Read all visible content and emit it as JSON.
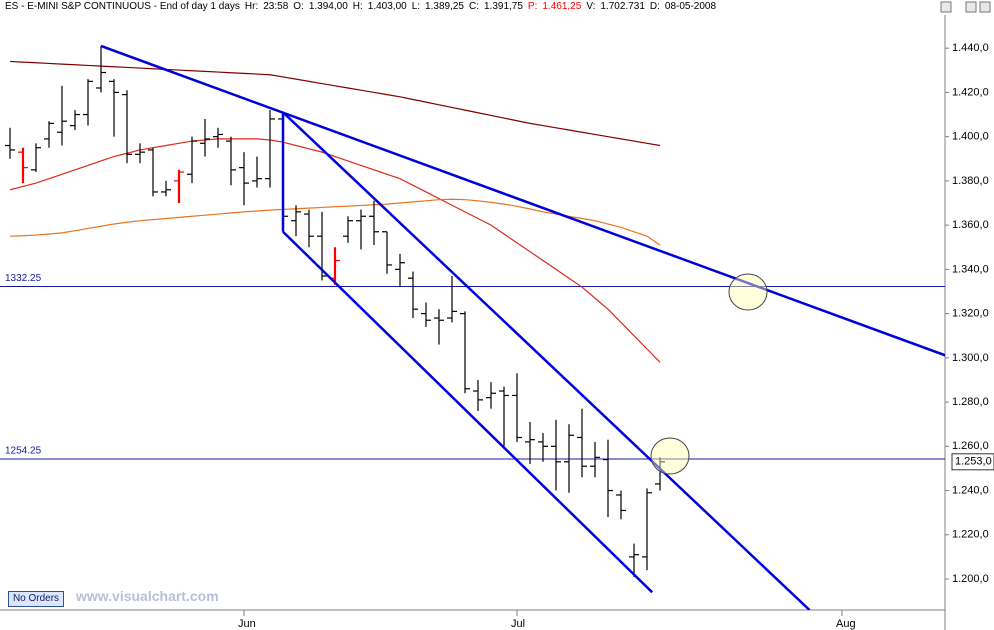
{
  "header": {
    "title": "ES - E-MINI S&P CONTINUOUS - End of day 1 days",
    "fields": [
      {
        "label": "Hr:",
        "value": "23:58"
      },
      {
        "label": "O:",
        "value": "1.394,00"
      },
      {
        "label": "H:",
        "value": "1.403,00"
      },
      {
        "label": "L:",
        "value": "1.389,25"
      },
      {
        "label": "C:",
        "value": "1.391,75"
      },
      {
        "label": "P:",
        "value": "1.461,25",
        "color": "#ff0000"
      },
      {
        "label": "V:",
        "value": "1.702.731"
      },
      {
        "label": "D:",
        "value": "08-05-2008"
      }
    ]
  },
  "button": "No Orders",
  "watermark": "www.visualchart.com",
  "chart_data": {
    "type": "ohlc",
    "categories": [
      null,
      null,
      null,
      null,
      null,
      null,
      null,
      null,
      null,
      null,
      null,
      null,
      null,
      null,
      null,
      null,
      null,
      null,
      "Jun",
      null,
      null,
      null,
      null,
      null,
      null,
      null,
      null,
      null,
      null,
      null,
      null,
      null,
      null,
      null,
      null,
      null,
      null,
      null,
      null,
      "Jul",
      null,
      null,
      null,
      null,
      null,
      null,
      null,
      null,
      null,
      null,
      null,
      null,
      null,
      null,
      null,
      null,
      null,
      null,
      null,
      null,
      null,
      null,
      null,
      null,
      "Aug",
      null,
      null,
      null,
      null,
      null,
      null,
      null
    ],
    "open": [
      1396,
      1393,
      1385,
      1399,
      1402,
      1405,
      1410,
      1422,
      1425,
      1419,
      1392,
      1394,
      1375,
      1380,
      1383,
      1397,
      1400,
      1398,
      1386,
      1380,
      1381,
      1408,
      1362,
      1365,
      1355,
      1336,
      1355,
      1362,
      1364,
      1357,
      1340,
      1336,
      1320,
      1318,
      1318,
      1320,
      1285,
      1282,
      1285,
      1283,
      1262,
      1262,
      1260,
      1253,
      1264,
      1251,
      1254,
      1238,
      1210,
      1210,
      1243,
      null,
      null,
      null,
      null,
      null,
      null,
      null,
      null,
      null,
      null,
      null,
      null,
      null,
      null,
      null,
      null,
      null,
      null,
      null,
      null,
      null
    ],
    "high": [
      1404,
      1395,
      1397,
      1407,
      1423,
      1412,
      1426,
      1441,
      1426,
      1421,
      1397,
      1395,
      1380,
      1385,
      1400,
      1408,
      1404,
      1400,
      1393,
      1391,
      1412,
      1410,
      1369,
      1367,
      1366,
      1350,
      1364,
      1367,
      1371,
      1357,
      1347,
      1339,
      1325,
      1322,
      1337,
      1321,
      1290,
      1289,
      1287,
      1293,
      1271,
      1266,
      1272,
      1270,
      1277,
      1262,
      1263,
      1240,
      1216,
      1241,
      1255,
      null,
      null,
      null,
      null,
      null,
      null,
      null,
      null,
      null,
      null,
      null,
      null,
      null,
      null,
      null,
      null,
      null,
      null,
      null,
      null,
      null
    ],
    "low": [
      1390,
      1379,
      1384,
      1395,
      1396,
      1403,
      1405,
      1420,
      1400,
      1388,
      1388,
      1373,
      1373,
      1370,
      1379,
      1391,
      1395,
      1378,
      1369,
      1377,
      1377,
      1360,
      1355,
      1350,
      1335,
      1333,
      1352,
      1349,
      1351,
      1338,
      1332,
      1318,
      1314,
      1306,
      1316,
      1284,
      1276,
      1277,
      1260,
      1262,
      1252,
      1253,
      1240,
      1239,
      1246,
      1246,
      1228,
      1227,
      1201,
      1204,
      1240,
      null,
      null,
      null,
      null,
      null,
      null,
      null,
      null,
      null,
      null,
      null,
      null,
      null,
      null,
      null,
      null,
      null,
      null,
      null,
      null,
      null
    ],
    "close": [
      1394,
      1386,
      1395,
      1406,
      1407,
      1410,
      1425,
      1429,
      1420,
      1392,
      1393,
      1375,
      1376,
      1384,
      1398,
      1399,
      1401,
      1385,
      1379,
      1381,
      1408,
      1364,
      1366,
      1355,
      1337,
      1344,
      1362,
      1364,
      1357,
      1342,
      1343,
      1322,
      1317,
      1317,
      1321,
      1286,
      1281,
      1284,
      1283,
      1264,
      1263,
      1260,
      1253,
      1265,
      1251,
      1255,
      1240,
      1231,
      1211,
      1239,
      1253,
      null,
      null,
      null,
      null,
      null,
      null,
      null,
      null,
      null,
      null,
      null,
      null,
      null,
      null,
      null,
      null,
      null,
      null,
      null,
      null,
      null
    ],
    "color": "#000000",
    "highlight_color": "#ff0000",
    "highlight": [
      1,
      13,
      25
    ],
    "series": [
      {
        "color": "#800000",
        "values": [
          1434,
          1433.7,
          1433.4,
          1433.1,
          1432.8,
          1432.5,
          1432.2,
          1431.9,
          1431.6,
          1431.3,
          1431,
          1430.7,
          1430.4,
          1430.1,
          1429.8,
          1429.5,
          1429.2,
          1428.9,
          1428.6,
          1428.3,
          1428,
          1427,
          1426,
          1425,
          1424,
          1423,
          1422,
          1421,
          1420,
          1419,
          1418,
          1416.8,
          1415.6,
          1414.4,
          1413.2,
          1412,
          1410.8,
          1409.6,
          1408.4,
          1407.2,
          1406,
          1405,
          1404,
          1403,
          1402,
          1401,
          1400,
          1399,
          1398,
          1397,
          1396,
          null,
          null,
          null,
          null,
          null,
          null,
          null,
          null,
          null,
          null,
          null,
          null,
          null,
          null,
          null,
          null,
          null,
          null,
          null,
          null,
          null
        ]
      },
      {
        "color": "#dd2a1a",
        "values": [
          1376,
          1377.5,
          1379,
          1381,
          1383,
          1385,
          1387,
          1389,
          1391,
          1392.5,
          1394,
          1395,
          1396,
          1397,
          1398,
          1398.5,
          1399,
          1399,
          1399,
          1399,
          1398.5,
          1397.5,
          1396,
          1394.5,
          1393,
          1391,
          1389,
          1387,
          1385,
          1383,
          1381,
          1378,
          1375,
          1372,
          1369,
          1366,
          1363,
          1360,
          1356,
          1352,
          1348,
          1344,
          1340,
          1336,
          1332,
          1327,
          1322,
          1316,
          1310,
          1304,
          1298,
          null,
          null,
          null,
          null,
          null,
          null,
          null,
          null,
          null,
          null,
          null,
          null,
          null,
          null,
          null,
          null,
          null,
          null,
          null,
          null,
          null
        ]
      },
      {
        "color": "#e8741e",
        "values": [
          1355,
          1355.2,
          1355.5,
          1356,
          1356.5,
          1357.5,
          1358.5,
          1359.5,
          1360.5,
          1361.3,
          1362,
          1362.5,
          1363,
          1363.5,
          1364,
          1364.5,
          1365,
          1365.5,
          1366,
          1366.4,
          1366.8,
          1367.1,
          1367.4,
          1367.7,
          1368,
          1368.3,
          1368.6,
          1368.9,
          1369.2,
          1369.5,
          1370,
          1370.5,
          1371,
          1371.5,
          1371.7,
          1371.5,
          1371,
          1370.3,
          1369.5,
          1368.5,
          1367.3,
          1366,
          1365,
          1364,
          1363,
          1362,
          1360.5,
          1359,
          1357,
          1355,
          1351,
          null,
          null,
          null,
          null,
          null,
          null,
          null,
          null,
          null,
          null,
          null,
          null,
          null,
          null,
          null,
          null,
          null,
          null,
          null,
          null,
          null
        ]
      }
    ],
    "trendlines": [
      {
        "from": [
          7,
          1441
        ],
        "to": [
          72,
          1301
        ],
        "color": "#0000dd"
      },
      {
        "from": [
          21,
          1411
        ],
        "to": [
          61.5,
          1186
        ],
        "color": "#0000dd"
      },
      {
        "from": [
          21,
          1357
        ],
        "to": [
          49.4,
          1194
        ],
        "color": "#0000dd"
      },
      {
        "from": [
          21,
          1411
        ],
        "to": [
          21,
          1357
        ],
        "color": "#0000dd"
      }
    ],
    "levels": [
      {
        "value": 1332.25,
        "color": "#1a1aa0"
      },
      {
        "value": 1254.25,
        "color": "#1a1aa0"
      }
    ],
    "last_price": {
      "value": 1253,
      "label": "1.253,0"
    },
    "ylim": [
      1186,
      1455
    ],
    "yticks": [
      {
        "value": 1200,
        "label": "1.200,0"
      },
      {
        "value": 1220,
        "label": "1.220,0"
      },
      {
        "value": 1240,
        "label": "1.240,0"
      },
      {
        "value": 1260,
        "label": "1.260,0"
      },
      {
        "value": 1280,
        "label": "1.280,0"
      },
      {
        "value": 1300,
        "label": "1.300,0"
      },
      {
        "value": 1320,
        "label": "1.320,0"
      },
      {
        "value": 1340,
        "label": "1.340,0"
      },
      {
        "value": 1360,
        "label": "1.360,0"
      },
      {
        "value": 1380,
        "label": "1.380,0"
      },
      {
        "value": 1400,
        "label": "1.400,0"
      },
      {
        "value": 1420,
        "label": "1.420,0"
      },
      {
        "value": 1440,
        "label": "1.440,0"
      }
    ],
    "grid": false
  }
}
